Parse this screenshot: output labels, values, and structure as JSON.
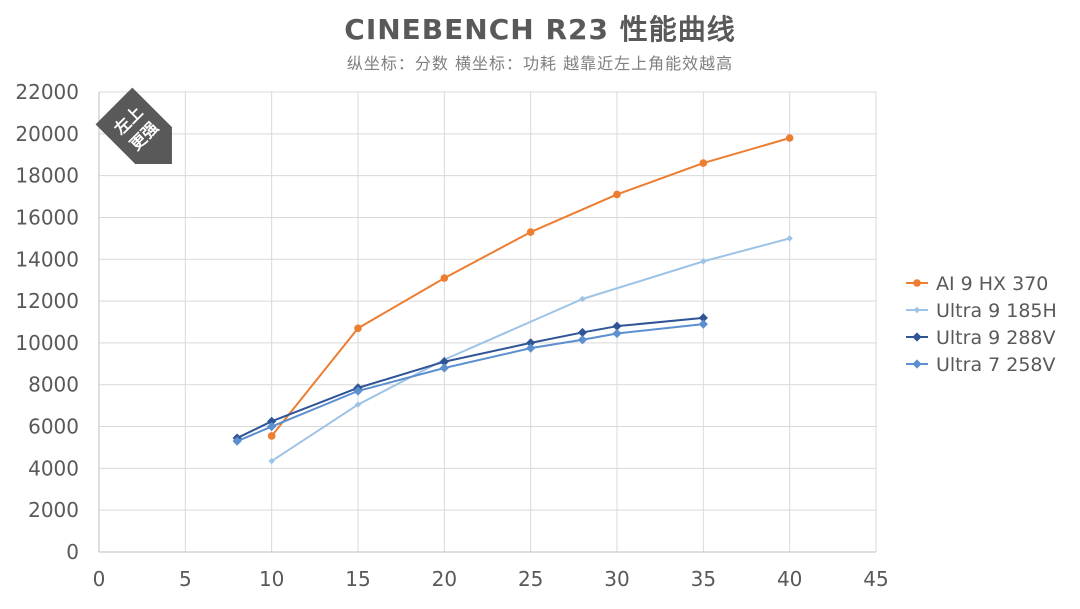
{
  "chart_data": {
    "type": "line",
    "title": "CINEBENCH R23 性能曲线",
    "subtitle": "纵坐标：分数   横坐标：功耗   越靠近左上角能效越高",
    "badge": [
      "左上",
      "更强"
    ],
    "xlim": [
      0,
      45
    ],
    "ylim": [
      0,
      22000
    ],
    "xticks": [
      0,
      5,
      10,
      15,
      20,
      25,
      30,
      35,
      40,
      45
    ],
    "yticks": [
      0,
      2000,
      4000,
      6000,
      8000,
      10000,
      12000,
      14000,
      16000,
      18000,
      20000,
      22000
    ],
    "grid": true,
    "legend_position": "right",
    "series": [
      {
        "name": "AI 9 HX 370",
        "color": "#ed7d31",
        "marker": "circle",
        "points": [
          [
            10,
            5550
          ],
          [
            15,
            10700
          ],
          [
            20,
            13100
          ],
          [
            25,
            15300
          ],
          [
            30,
            17100
          ],
          [
            35,
            18600
          ],
          [
            40,
            19800
          ]
        ]
      },
      {
        "name": "Ultra 9 185H",
        "color": "#9dc3e6",
        "marker": "diamond-small",
        "points": [
          [
            10,
            4350
          ],
          [
            15,
            7050
          ],
          [
            20,
            9200
          ],
          [
            28,
            12100
          ],
          [
            35,
            13900
          ],
          [
            40,
            15000
          ]
        ]
      },
      {
        "name": "Ultra 9 288V",
        "color": "#2f5597",
        "marker": "diamond",
        "points": [
          [
            8,
            5450
          ],
          [
            10,
            6250
          ],
          [
            15,
            7850
          ],
          [
            20,
            9100
          ],
          [
            25,
            10000
          ],
          [
            28,
            10500
          ],
          [
            30,
            10800
          ],
          [
            35,
            11200
          ]
        ]
      },
      {
        "name": "Ultra 7 258V",
        "color": "#5b8fd0",
        "marker": "diamond",
        "points": [
          [
            8,
            5300
          ],
          [
            10,
            6000
          ],
          [
            15,
            7700
          ],
          [
            20,
            8800
          ],
          [
            25,
            9750
          ],
          [
            28,
            10150
          ],
          [
            30,
            10450
          ],
          [
            35,
            10900
          ]
        ]
      }
    ]
  }
}
